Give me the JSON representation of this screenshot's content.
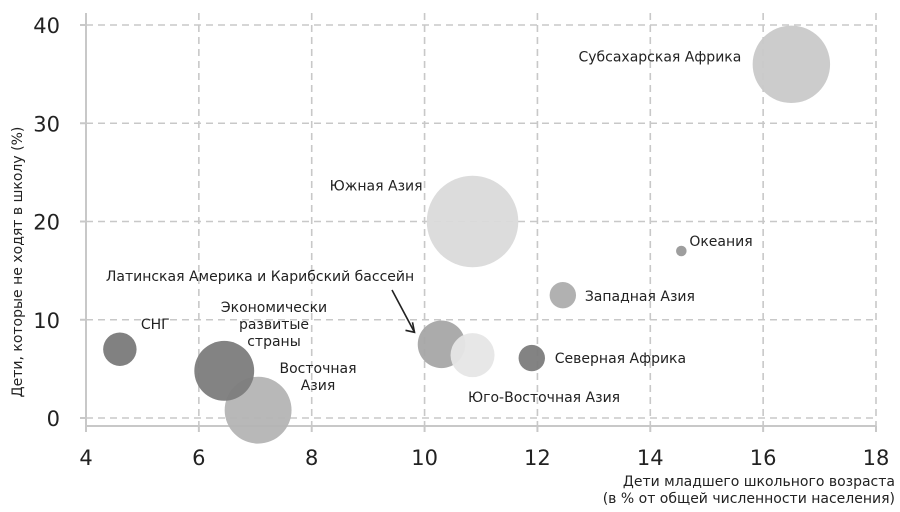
{
  "chart_data": {
    "type": "scatter",
    "subtype": "bubble",
    "xlabel_lines": [
      "Дети младшего школьного возраста",
      "(в % от общей численности населения)"
    ],
    "ylabel": "Дети, которые не ходят в школу (%)",
    "xlim": [
      4,
      18
    ],
    "ylim": [
      0,
      40
    ],
    "xticks": [
      "4",
      "6",
      "8",
      "10",
      "12",
      "14",
      "16",
      "18"
    ],
    "yticks": [
      "0",
      "10",
      "20",
      "30",
      "40"
    ],
    "grid": true,
    "points": [
      {
        "name": "Субсахарская Африка",
        "label_lines": [
          "Субсахарская Африка"
        ],
        "x": 16.5,
        "y": 36,
        "size": 44,
        "color": "#c9c9c9"
      },
      {
        "name": "Южная Азия",
        "label_lines": [
          "Южная Азия"
        ],
        "x": 10.85,
        "y": 20,
        "size": 52,
        "color": "#dadada"
      },
      {
        "name": "Океания",
        "label_lines": [
          "Океания"
        ],
        "x": 14.55,
        "y": 17,
        "size": 6,
        "color": "#999999"
      },
      {
        "name": "Западная Азия",
        "label_lines": [
          "Западная Азия"
        ],
        "x": 12.45,
        "y": 12.5,
        "size": 15,
        "color": "#adadad"
      },
      {
        "name": "Юго-Восточная Азия",
        "label_lines": [
          "Юго-Восточная Азия"
        ],
        "x": 10.85,
        "y": 6.4,
        "size": 25,
        "color": "#e6e6e6"
      },
      {
        "name": "Латинская Америка и Карибский бассейн",
        "label_lines": [
          "Латинская Америка и Карибский бассейн"
        ],
        "x": 10.3,
        "y": 7.5,
        "size": 27,
        "color": "#a6a6a6"
      },
      {
        "name": "Северная Африка",
        "label_lines": [
          "Северная Африка"
        ],
        "x": 11.9,
        "y": 6.1,
        "size": 15,
        "color": "#7c7c7c"
      },
      {
        "name": "СНГ",
        "label_lines": [
          "СНГ"
        ],
        "x": 4.6,
        "y": 7,
        "size": 19,
        "color": "#7a7a7a"
      },
      {
        "name": "Восточная Азия",
        "label_lines": [
          "Восточная",
          "Азия"
        ],
        "x": 7.05,
        "y": 0.8,
        "size": 38,
        "color": "#b4b4b4"
      },
      {
        "name": "Экономически развитые страны",
        "label_lines": [
          "Экономически",
          "развитые",
          "страны"
        ],
        "x": 6.45,
        "y": 4.8,
        "size": 34,
        "color": "#7c7c7c"
      }
    ]
  }
}
